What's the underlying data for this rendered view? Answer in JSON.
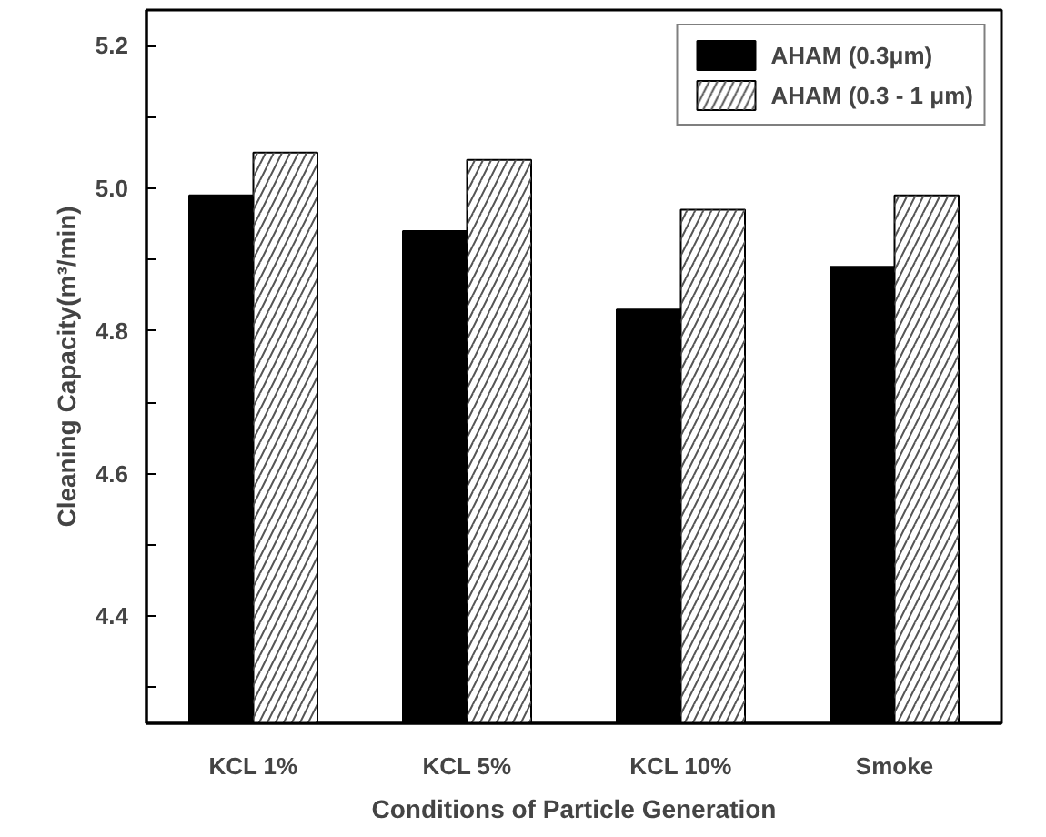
{
  "chart_data": {
    "type": "bar",
    "xlabel": "Conditions of Particle Generation",
    "ylabel": "Cleaning Capacity(m³/min)",
    "categories": [
      "KCL 1%",
      "KCL 5%",
      "KCL 10%",
      "Smoke"
    ],
    "series": [
      {
        "name": "AHAM (0.3μm)",
        "color": "#000000",
        "values": [
          4.99,
          4.94,
          4.83,
          4.89
        ]
      },
      {
        "name": "AHAM (0.3 - 1 μm)",
        "color": "#ffffff",
        "values": [
          5.05,
          5.04,
          4.97,
          4.99
        ]
      }
    ],
    "ylim": [
      4.25,
      5.25
    ],
    "yticks": [
      {
        "value": 4.3,
        "label": null
      },
      4.4,
      {
        "value": 4.5,
        "label": null
      },
      4.6,
      {
        "value": 4.7,
        "label": null
      },
      4.8,
      {
        "value": 4.9,
        "label": null
      },
      {
        "value": 5.0,
        "label": "5.0"
      },
      {
        "value": 5.1,
        "label": null
      },
      5.2
    ],
    "legend": "top right",
    "grid": false
  }
}
